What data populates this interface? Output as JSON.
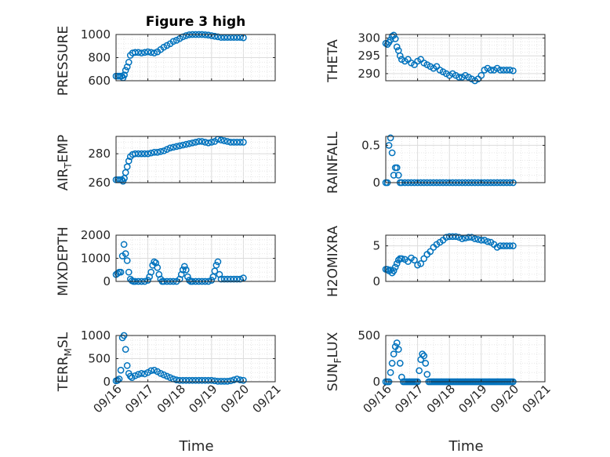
{
  "colors": {
    "series": "#0072bd",
    "axis": "#262626",
    "grid": "#e0e0e0"
  },
  "chart_data": [
    {
      "type": "scatter",
      "id": "pressure",
      "title": "Figure 3 high",
      "ylabel": "PRESSURE",
      "ylim": [
        600,
        1000
      ],
      "yticks": [
        600,
        800,
        1000
      ],
      "yticklabels": [
        "600",
        "800",
        "1000"
      ],
      "xlim": [
        0,
        5
      ],
      "grid": true,
      "series": [
        {
          "x": [
            0.0,
            0.06,
            0.12,
            0.18,
            0.22,
            0.26,
            0.3,
            0.35,
            0.4,
            0.45,
            0.52,
            0.6,
            0.7,
            0.8,
            0.9,
            1.0,
            1.1,
            1.2,
            1.3,
            1.4,
            1.5,
            1.6,
            1.7,
            1.8,
            1.9,
            2.0,
            2.1,
            2.2,
            2.3,
            2.4,
            2.5,
            2.6,
            2.7,
            2.8,
            2.9,
            3.0,
            3.1,
            3.2,
            3.3,
            3.4,
            3.5,
            3.6,
            3.7,
            3.8,
            3.9,
            4.0
          ],
          "y": [
            640,
            640,
            640,
            640,
            625,
            650,
            690,
            720,
            760,
            820,
            840,
            845,
            845,
            840,
            845,
            850,
            845,
            840,
            850,
            870,
            890,
            905,
            920,
            940,
            950,
            965,
            980,
            990,
            998,
            1000,
            1000,
            1000,
            1000,
            998,
            995,
            990,
            985,
            980,
            975,
            975,
            975,
            975,
            975,
            975,
            975,
            972
          ]
        }
      ]
    },
    {
      "type": "scatter",
      "id": "theta",
      "ylabel": "THETA",
      "ylim": [
        288,
        301
      ],
      "yticks": [
        290,
        295,
        300
      ],
      "yticklabels": [
        "290",
        "295",
        "300"
      ],
      "xlim": [
        0,
        5
      ],
      "grid": true,
      "series": [
        {
          "x": [
            0.0,
            0.05,
            0.1,
            0.15,
            0.2,
            0.25,
            0.3,
            0.35,
            0.4,
            0.45,
            0.5,
            0.6,
            0.7,
            0.8,
            0.9,
            1.0,
            1.1,
            1.2,
            1.3,
            1.4,
            1.5,
            1.6,
            1.7,
            1.8,
            1.9,
            2.0,
            2.1,
            2.2,
            2.3,
            2.4,
            2.5,
            2.6,
            2.7,
            2.8,
            2.9,
            3.0,
            3.1,
            3.2,
            3.3,
            3.4,
            3.5,
            3.6,
            3.7,
            3.8,
            3.9,
            4.0
          ],
          "y": [
            298.5,
            298.2,
            298.8,
            299.5,
            300.5,
            300.8,
            299.8,
            297.5,
            296.5,
            295.0,
            294.0,
            293.5,
            294.0,
            293.0,
            292.5,
            293.5,
            294.0,
            293.0,
            292.5,
            292.0,
            291.5,
            292.0,
            291.0,
            290.5,
            290.0,
            289.5,
            290.0,
            289.5,
            289.0,
            289.0,
            289.5,
            289.0,
            288.5,
            288.0,
            288.5,
            289.5,
            291.0,
            291.5,
            291.0,
            291.0,
            291.5,
            291.0,
            291.0,
            291.0,
            291.0,
            290.8
          ]
        }
      ]
    },
    {
      "type": "scatter",
      "id": "air_temp",
      "ylabel": "AIR_TEMP",
      "ylim": [
        260,
        292
      ],
      "yticks": [
        260,
        280
      ],
      "yticklabels": [
        "260",
        "280"
      ],
      "xlim": [
        0,
        5
      ],
      "grid": true,
      "series": [
        {
          "x": [
            0.0,
            0.06,
            0.12,
            0.18,
            0.22,
            0.26,
            0.3,
            0.35,
            0.4,
            0.45,
            0.52,
            0.6,
            0.7,
            0.8,
            0.9,
            1.0,
            1.1,
            1.2,
            1.3,
            1.4,
            1.5,
            1.6,
            1.7,
            1.8,
            1.9,
            2.0,
            2.1,
            2.2,
            2.3,
            2.4,
            2.5,
            2.6,
            2.7,
            2.8,
            2.9,
            3.0,
            3.1,
            3.2,
            3.3,
            3.4,
            3.5,
            3.6,
            3.7,
            3.8,
            3.9,
            4.0
          ],
          "y": [
            262,
            262,
            262,
            262,
            261,
            263,
            267,
            271,
            275,
            278,
            279.5,
            280,
            280,
            280,
            280,
            280,
            280.5,
            281,
            281,
            281.5,
            282,
            283,
            284,
            284.5,
            285,
            285.5,
            286,
            286.5,
            287,
            287.5,
            288,
            288.5,
            288.5,
            288,
            287.5,
            288,
            288.5,
            290,
            289.5,
            289,
            288.5,
            288,
            288,
            288,
            288,
            288
          ]
        }
      ]
    },
    {
      "type": "scatter",
      "id": "rainfall",
      "ylabel": "RAINFALL",
      "ylim": [
        0,
        0.62
      ],
      "yticks": [
        0,
        0.5
      ],
      "yticklabels": [
        "0",
        "0.5"
      ],
      "xlim": [
        0,
        5
      ],
      "grid": true,
      "series": [
        {
          "x": [
            0.0,
            0.05,
            0.1,
            0.15,
            0.2,
            0.25,
            0.3,
            0.35,
            0.4,
            0.45,
            0.5,
            0.6,
            0.7,
            0.8,
            0.9,
            1.0,
            1.1,
            1.2,
            1.3,
            1.4,
            1.5,
            1.6,
            1.7,
            1.8,
            1.9,
            2.0,
            2.1,
            2.2,
            2.3,
            2.4,
            2.5,
            2.6,
            2.7,
            2.8,
            2.9,
            3.0,
            3.1,
            3.2,
            3.3,
            3.4,
            3.5,
            3.6,
            3.7,
            3.8,
            3.9,
            4.0
          ],
          "y": [
            0,
            0,
            0.5,
            0.6,
            0.4,
            0.1,
            0.2,
            0.2,
            0.1,
            0,
            0,
            0,
            0,
            0,
            0,
            0,
            0,
            0,
            0,
            0,
            0,
            0,
            0,
            0,
            0,
            0,
            0,
            0,
            0,
            0,
            0,
            0,
            0,
            0,
            0,
            0,
            0,
            0,
            0,
            0,
            0,
            0,
            0,
            0,
            0,
            0
          ]
        }
      ]
    },
    {
      "type": "scatter",
      "id": "mixdepth",
      "ylabel": "MIXDEPTH",
      "ylim": [
        0,
        2000
      ],
      "yticks": [
        0,
        1000,
        2000
      ],
      "yticklabels": [
        "0",
        "1000",
        "2000"
      ],
      "xlim": [
        0,
        5
      ],
      "grid": true,
      "series": [
        {
          "x": [
            0.0,
            0.05,
            0.1,
            0.15,
            0.2,
            0.25,
            0.3,
            0.35,
            0.4,
            0.45,
            0.5,
            0.55,
            0.6,
            0.7,
            0.8,
            0.9,
            1.0,
            1.05,
            1.1,
            1.15,
            1.2,
            1.25,
            1.3,
            1.35,
            1.4,
            1.45,
            1.5,
            1.6,
            1.7,
            1.8,
            1.9,
            2.0,
            2.05,
            2.1,
            2.15,
            2.2,
            2.25,
            2.3,
            2.35,
            2.4,
            2.5,
            2.6,
            2.7,
            2.8,
            2.9,
            3.0,
            3.05,
            3.1,
            3.15,
            3.2,
            3.25,
            3.3,
            3.4,
            3.5,
            3.6,
            3.7,
            3.8,
            3.9,
            4.0
          ],
          "y": [
            300,
            350,
            400,
            400,
            1100,
            1600,
            1200,
            900,
            400,
            100,
            30,
            0,
            0,
            0,
            0,
            0,
            50,
            200,
            400,
            700,
            850,
            800,
            600,
            300,
            100,
            0,
            0,
            0,
            0,
            0,
            0,
            100,
            300,
            500,
            650,
            500,
            200,
            50,
            0,
            0,
            0,
            0,
            0,
            0,
            0,
            50,
            200,
            450,
            700,
            850,
            300,
            100,
            100,
            100,
            100,
            100,
            100,
            100,
            150
          ]
        }
      ]
    },
    {
      "type": "scatter",
      "id": "h2omixra",
      "ylabel": "H2OMIXRA",
      "ylim": [
        0,
        6.5
      ],
      "yticks": [
        0,
        5
      ],
      "yticklabels": [
        "0",
        "5"
      ],
      "xlim": [
        0,
        5
      ],
      "grid": true,
      "series": [
        {
          "x": [
            0.0,
            0.05,
            0.1,
            0.15,
            0.2,
            0.25,
            0.3,
            0.35,
            0.4,
            0.45,
            0.5,
            0.6,
            0.7,
            0.8,
            0.9,
            1.0,
            1.1,
            1.2,
            1.3,
            1.4,
            1.5,
            1.6,
            1.7,
            1.8,
            1.9,
            2.0,
            2.1,
            2.2,
            2.3,
            2.4,
            2.5,
            2.6,
            2.7,
            2.8,
            2.9,
            3.0,
            3.1,
            3.2,
            3.3,
            3.4,
            3.5,
            3.6,
            3.7,
            3.8,
            3.9,
            4.0
          ],
          "y": [
            1.7,
            1.7,
            1.5,
            1.6,
            1.2,
            1.5,
            2.0,
            2.5,
            3.0,
            3.2,
            3.2,
            3.1,
            2.8,
            3.3,
            3.0,
            2.3,
            2.5,
            3.2,
            3.8,
            4.2,
            4.8,
            5.2,
            5.5,
            5.8,
            6.2,
            6.3,
            6.3,
            6.3,
            6.2,
            6.0,
            6.1,
            6.2,
            6.2,
            6.0,
            5.9,
            5.8,
            5.8,
            5.6,
            5.5,
            5.2,
            4.8,
            5.0,
            5.0,
            5.0,
            5.0,
            5.0
          ]
        }
      ]
    },
    {
      "type": "scatter",
      "id": "terr_msl",
      "ylabel": "TERR_MSL",
      "ylim": [
        0,
        1000
      ],
      "yticks": [
        0,
        500,
        1000
      ],
      "yticklabels": [
        "0",
        "500",
        "1000"
      ],
      "xlim": [
        0,
        5
      ],
      "grid": true,
      "xticks": [
        0,
        1,
        2,
        3,
        4,
        5
      ],
      "xticklabels": [
        "09/16",
        "09/17",
        "09/18",
        "09/19",
        "09/20",
        "09/21"
      ],
      "xlabel": "Time",
      "series": [
        {
          "x": [
            0.0,
            0.05,
            0.1,
            0.15,
            0.2,
            0.25,
            0.3,
            0.35,
            0.4,
            0.45,
            0.5,
            0.6,
            0.7,
            0.8,
            0.9,
            1.0,
            1.1,
            1.2,
            1.3,
            1.4,
            1.5,
            1.6,
            1.7,
            1.8,
            1.9,
            2.0,
            2.1,
            2.2,
            2.3,
            2.4,
            2.5,
            2.6,
            2.7,
            2.8,
            2.9,
            3.0,
            3.1,
            3.2,
            3.3,
            3.4,
            3.5,
            3.6,
            3.7,
            3.8,
            3.9,
            4.0
          ],
          "y": [
            20,
            30,
            60,
            250,
            950,
            1000,
            700,
            350,
            180,
            120,
            90,
            130,
            160,
            180,
            170,
            200,
            240,
            250,
            220,
            180,
            150,
            120,
            90,
            60,
            40,
            30,
            30,
            30,
            30,
            30,
            30,
            30,
            30,
            30,
            30,
            30,
            20,
            10,
            10,
            10,
            10,
            20,
            40,
            60,
            40,
            30
          ]
        }
      ]
    },
    {
      "type": "scatter",
      "id": "sun_flux",
      "ylabel": "SUN_FLUX",
      "ylim": [
        0,
        500
      ],
      "yticks": [
        0,
        500
      ],
      "yticklabels": [
        "0",
        "500"
      ],
      "xlim": [
        0,
        5
      ],
      "grid": true,
      "xticks": [
        0,
        1,
        2,
        3,
        4,
        5
      ],
      "xticklabels": [
        "09/16",
        "09/17",
        "09/18",
        "09/19",
        "09/20",
        "09/21"
      ],
      "xlabel": "Time",
      "series": [
        {
          "x": [
            0.0,
            0.05,
            0.1,
            0.15,
            0.2,
            0.25,
            0.3,
            0.35,
            0.4,
            0.45,
            0.5,
            0.55,
            0.6,
            0.65,
            0.7,
            0.75,
            0.8,
            0.85,
            0.9,
            0.95,
            1.0,
            1.05,
            1.1,
            1.15,
            1.2,
            1.25,
            1.3,
            1.35,
            1.4,
            1.45,
            1.5,
            1.55,
            1.6,
            1.65,
            1.7,
            1.75,
            1.8,
            1.85,
            1.9,
            1.95,
            2.0,
            2.05,
            2.1,
            2.15,
            2.2,
            2.25,
            2.3,
            2.35,
            2.4,
            2.45,
            2.5,
            2.55,
            2.6,
            2.65,
            2.7,
            2.75,
            2.8,
            2.85,
            2.9,
            2.95,
            3.0,
            3.05,
            3.1,
            3.15,
            3.2,
            3.25,
            3.3,
            3.35,
            3.4,
            3.45,
            3.5,
            3.55,
            3.6,
            3.65,
            3.7,
            3.75,
            3.8,
            3.85,
            3.9,
            3.95,
            4.0
          ],
          "y": [
            0,
            0,
            0,
            100,
            200,
            300,
            380,
            420,
            350,
            200,
            50,
            0,
            0,
            0,
            0,
            0,
            0,
            0,
            0,
            0,
            0,
            120,
            240,
            300,
            280,
            200,
            80,
            0,
            0,
            0,
            0,
            0,
            0,
            0,
            0,
            0,
            0,
            0,
            0,
            0,
            0,
            0,
            0,
            0,
            0,
            0,
            0,
            0,
            0,
            0,
            0,
            0,
            0,
            0,
            0,
            0,
            0,
            0,
            0,
            0,
            0,
            0,
            0,
            0,
            0,
            0,
            0,
            0,
            0,
            0,
            0,
            0,
            0,
            0,
            0,
            0,
            0,
            0,
            0,
            0,
            0
          ]
        }
      ]
    }
  ]
}
